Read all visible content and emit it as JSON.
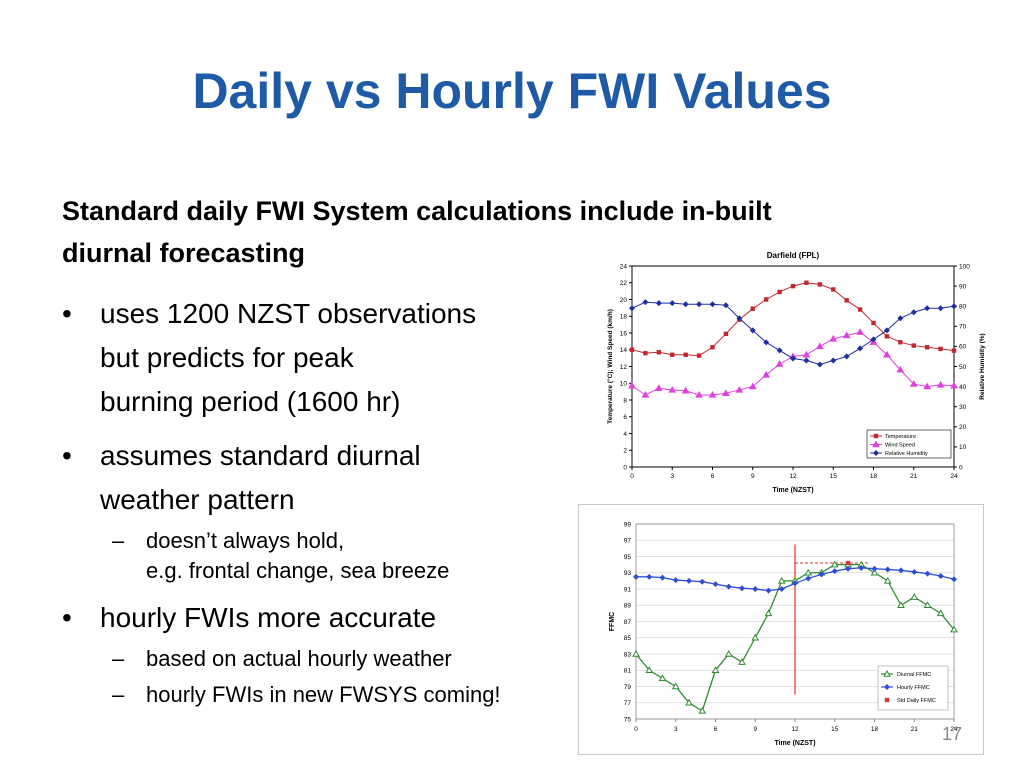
{
  "slide": {
    "title": "Daily vs Hourly FWI Values",
    "lead_line1": "Standard daily FWI System calculations include in-built",
    "lead_line2": "diurnal forecasting",
    "bullet1_line1": "uses 1200 NZST observations",
    "bullet1_line2": "but predicts for peak",
    "bullet1_line3": "burning period (1600 hr)",
    "bullet2_line1": "assumes standard diurnal",
    "bullet2_line2": "weather pattern",
    "sub1_line1": "doesn’t always hold,",
    "sub1_line2": "e.g. frontal change, sea breeze",
    "bullet3": "hourly FWIs more accurate",
    "sub2": "based on actual hourly weather",
    "sub3": "hourly FWIs in new FWSYS coming!",
    "bullet_symbol": "•",
    "dash_symbol": "–",
    "page_number": "17"
  },
  "chart_data": [
    {
      "type": "line",
      "title": "Darfield (FPL)",
      "xlabel": "Time (NZST)",
      "ylabel": "Temperature (°C); Wind Speed (km/h)",
      "y2label": "Relative Humidity (%)",
      "xlim": [
        0,
        24
      ],
      "ylim": [
        0,
        24
      ],
      "y2lim": [
        0,
        100
      ],
      "x_ticks": [
        "0",
        "3",
        "6",
        "9",
        "12",
        "15",
        "18",
        "21",
        "24"
      ],
      "y_ticks": [
        "0",
        "2",
        "4",
        "6",
        "8",
        "10",
        "12",
        "14",
        "16",
        "18",
        "20",
        "22",
        "24"
      ],
      "y2_ticks": [
        "0",
        "10",
        "20",
        "30",
        "40",
        "50",
        "60",
        "70",
        "80",
        "90",
        "100"
      ],
      "x": [
        0,
        1,
        2,
        3,
        4,
        5,
        6,
        7,
        8,
        9,
        10,
        11,
        12,
        13,
        14,
        15,
        16,
        17,
        18,
        19,
        20,
        21,
        22,
        23,
        24
      ],
      "legend_position": "bottom-right",
      "grid": false,
      "series": [
        {
          "name": "Temperature",
          "axis": "left",
          "color": "#c0282d",
          "marker": "square",
          "values": [
            14,
            13.6,
            13.7,
            13.4,
            13.4,
            13.3,
            14.3,
            15.9,
            17.6,
            18.9,
            20,
            20.9,
            21.6,
            22,
            21.8,
            21.2,
            19.9,
            18.8,
            17.2,
            15.6,
            14.9,
            14.5,
            14.3,
            14.1,
            13.9
          ]
        },
        {
          "name": "Wind Speed",
          "axis": "left",
          "color": "#e040e0",
          "marker": "triangle",
          "values": [
            9.7,
            8.6,
            9.4,
            9.2,
            9.1,
            8.6,
            8.6,
            8.8,
            9.2,
            9.6,
            11,
            12.3,
            13.2,
            13.4,
            14.4,
            15.3,
            15.7,
            16.1,
            14.9,
            13.4,
            11.6,
            9.9,
            9.6,
            9.8,
            9.7
          ]
        },
        {
          "name": "Relative Humidity",
          "axis": "right",
          "color": "#1e2e9e",
          "marker": "diamond",
          "values": [
            79,
            82,
            81.5,
            81.5,
            81,
            81,
            81,
            80.5,
            74,
            68,
            62,
            58,
            54,
            53,
            51,
            53,
            55,
            59,
            63.5,
            68,
            74,
            77,
            79,
            79,
            80
          ]
        }
      ]
    },
    {
      "type": "line",
      "title": "",
      "xlabel": "Time (NZST)",
      "ylabel": "FFMC",
      "xlim": [
        0,
        24
      ],
      "ylim": [
        75,
        99
      ],
      "x_ticks": [
        "0",
        "3",
        "6",
        "9",
        "12",
        "15",
        "18",
        "21",
        "24"
      ],
      "y_ticks": [
        "75",
        "77",
        "79",
        "81",
        "83",
        "85",
        "87",
        "89",
        "91",
        "93",
        "95",
        "97",
        "99"
      ],
      "x": [
        0,
        1,
        2,
        3,
        4,
        5,
        6,
        7,
        8,
        9,
        10,
        11,
        12,
        13,
        14,
        15,
        16,
        17,
        18,
        19,
        20,
        21,
        22,
        23,
        24
      ],
      "legend_position": "bottom-right",
      "grid": true,
      "series": [
        {
          "name": "Diurnal FFMC",
          "color": "#2e8b2e",
          "marker": "triangle",
          "values": [
            83,
            81,
            80,
            79,
            77,
            76,
            81,
            83,
            82,
            85,
            88,
            92,
            92,
            93,
            93,
            94,
            94,
            94,
            93,
            92,
            89,
            90,
            89,
            88,
            86
          ]
        },
        {
          "name": "Hourly FFMC",
          "color": "#2e4ed8",
          "marker": "diamond",
          "values": [
            92.5,
            92.5,
            92.4,
            92.1,
            92,
            91.9,
            91.6,
            91.3,
            91.1,
            91,
            90.8,
            91,
            91.7,
            92.3,
            92.8,
            93.2,
            93.5,
            93.6,
            93.5,
            93.4,
            93.3,
            93.1,
            92.9,
            92.6,
            92.2
          ]
        },
        {
          "name": "Std Daily FFMC",
          "color": "#d23a3a",
          "marker": "square",
          "x": [
            16
          ],
          "values": [
            94.2
          ]
        }
      ],
      "annotations": [
        {
          "type": "vertical-line",
          "x": 12,
          "from": 78,
          "to": 96.5,
          "color": "#e03030"
        },
        {
          "type": "horizontal-dashed-line",
          "y": 94.2,
          "from": 12,
          "to": 17.5,
          "color": "#e03030"
        }
      ]
    }
  ]
}
